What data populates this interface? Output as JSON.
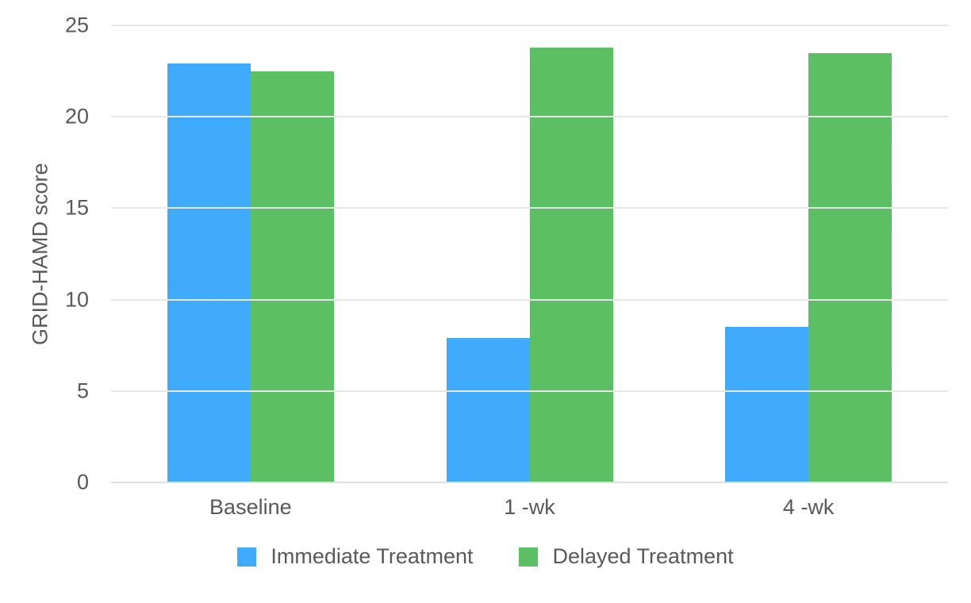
{
  "chart_data": {
    "type": "bar",
    "title": "",
    "xlabel": "",
    "ylabel": "GRID-HAMD score",
    "ylim": [
      0,
      25
    ],
    "yticks": [
      0,
      5,
      10,
      15,
      20,
      25
    ],
    "grid": true,
    "legend_position": "bottom",
    "categories": [
      "Baseline",
      "1 -wk",
      "4 -wk"
    ],
    "series": [
      {
        "name": "Immediate Treatment",
        "color": "#41ABFB",
        "values": [
          22.9,
          7.9,
          8.5
        ]
      },
      {
        "name": "Delayed Treatment",
        "color": "#5CBF63",
        "values": [
          22.5,
          23.8,
          23.5
        ]
      }
    ],
    "colors": {
      "gridline": "#e7e7e7",
      "axis_line": "#e0e0e0",
      "text": "#58595b",
      "background": "#ffffff"
    }
  }
}
